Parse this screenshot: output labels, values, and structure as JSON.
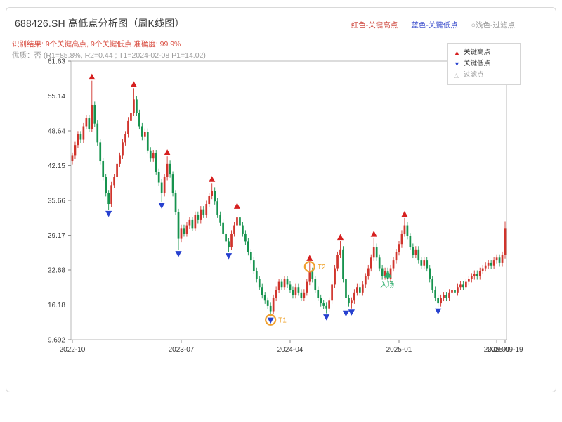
{
  "header": {
    "title": "688426.SH 高低点分析图（周K线图）",
    "legend_top": [
      {
        "label": "红色-关键高点",
        "color": "#cf4b42"
      },
      {
        "label": "蓝色-关键低点",
        "color": "#4a5bd0"
      },
      {
        "label": "○浅色-过滤点",
        "color": "#9a9a9a"
      }
    ],
    "result_line": "识别结果: 9个关键高点, 9个关键低点  准确度: 99.9%",
    "quality_line": "优质：否 (R1=85.8%, R2=0.44 ; T1=2024-02-08 P1=14.02)"
  },
  "legend_box": {
    "items": [
      {
        "label": "关键高点",
        "marker": "up-triangle",
        "color": "#d62020",
        "label_color": "#333333"
      },
      {
        "label": "关键低点",
        "marker": "down-triangle",
        "color": "#2741cf",
        "label_color": "#333333"
      },
      {
        "label": "过滤点",
        "marker": "open-triangle",
        "color": "#bbbbbb",
        "label_color": "#999999"
      }
    ]
  },
  "chart_data": {
    "type": "candlestick",
    "title": "688426.SH 高低点分析图（周K线图）",
    "ylim": [
      9.692,
      61.63
    ],
    "y_tick_labels": [
      "61.63",
      "55.14",
      "48.64",
      "42.15",
      "35.66",
      "29.17",
      "22.68",
      "16.18",
      "9.692"
    ],
    "x_ticks": [
      {
        "week": 0,
        "label": "2022-10"
      },
      {
        "week": 39,
        "label": "2023-07"
      },
      {
        "week": 78,
        "label": "2024-04"
      },
      {
        "week": 117,
        "label": "2025-01"
      },
      {
        "week": 152,
        "label": "2025-09"
      },
      {
        "week": 155,
        "label": "2025-09-19"
      }
    ],
    "up_color": "#d0342c",
    "down_color": "#16934e",
    "key_high_color": "#d62020",
    "key_low_color": "#2741cf",
    "annotation_color": "#f0a02e",
    "entry_color": "#2fae6d",
    "candles": [
      [
        43.0,
        44.6,
        42.4,
        44.0
      ],
      [
        44.0,
        46.6,
        43.4,
        46.0
      ],
      [
        46.0,
        48.6,
        45.4,
        48.0
      ],
      [
        48.0,
        48.6,
        46.4,
        47.0
      ],
      [
        47.0,
        50.1,
        46.4,
        49.5
      ],
      [
        49.5,
        51.6,
        48.9,
        51.0
      ],
      [
        51.0,
        51.6,
        48.4,
        49.0
      ],
      [
        49.0,
        58.0,
        48.4,
        53.5
      ],
      [
        53.5,
        54.1,
        49.4,
        50.0
      ],
      [
        50.0,
        50.6,
        45.9,
        46.5
      ],
      [
        46.5,
        47.1,
        42.4,
        43.0
      ],
      [
        43.0,
        43.6,
        39.4,
        40.0
      ],
      [
        40.0,
        40.6,
        36.4,
        37.0
      ],
      [
        37.0,
        37.6,
        33.9,
        35.0
      ],
      [
        35.0,
        39.1,
        34.4,
        38.5
      ],
      [
        38.5,
        40.6,
        37.9,
        40.0
      ],
      [
        40.0,
        43.1,
        39.4,
        42.5
      ],
      [
        42.5,
        44.6,
        41.9,
        44.0
      ],
      [
        44.0,
        47.1,
        43.4,
        46.5
      ],
      [
        46.5,
        48.6,
        45.9,
        48.0
      ],
      [
        48.0,
        51.1,
        47.4,
        50.5
      ],
      [
        50.5,
        52.6,
        49.9,
        52.0
      ],
      [
        52.0,
        56.6,
        51.4,
        54.5
      ],
      [
        54.5,
        55.1,
        51.4,
        52.0
      ],
      [
        52.0,
        52.6,
        48.9,
        49.5
      ],
      [
        49.5,
        50.1,
        46.9,
        47.5
      ],
      [
        47.5,
        49.1,
        46.9,
        48.5
      ],
      [
        48.5,
        49.1,
        44.4,
        45.0
      ],
      [
        45.0,
        45.6,
        42.9,
        43.5
      ],
      [
        43.5,
        45.1,
        42.9,
        44.5
      ],
      [
        44.5,
        45.1,
        40.4,
        41.0
      ],
      [
        41.0,
        41.6,
        38.4,
        39.0
      ],
      [
        39.0,
        39.6,
        35.4,
        37.0
      ],
      [
        37.0,
        40.6,
        36.4,
        40.0
      ],
      [
        40.0,
        43.9,
        39.4,
        42.5
      ],
      [
        42.5,
        43.1,
        39.9,
        40.5
      ],
      [
        40.5,
        41.1,
        36.4,
        37.0
      ],
      [
        37.0,
        37.6,
        32.9,
        33.5
      ],
      [
        33.5,
        34.1,
        26.4,
        28.5
      ],
      [
        28.5,
        31.1,
        27.9,
        30.5
      ],
      [
        30.5,
        31.1,
        28.9,
        29.5
      ],
      [
        29.5,
        31.6,
        28.9,
        31.0
      ],
      [
        31.0,
        32.6,
        30.4,
        32.0
      ],
      [
        32.0,
        32.6,
        29.9,
        30.5
      ],
      [
        30.5,
        33.6,
        29.9,
        33.0
      ],
      [
        33.0,
        33.6,
        31.4,
        32.0
      ],
      [
        32.0,
        34.6,
        31.4,
        34.0
      ],
      [
        34.0,
        34.6,
        32.4,
        33.0
      ],
      [
        33.0,
        35.6,
        32.4,
        35.0
      ],
      [
        35.0,
        37.1,
        34.4,
        36.5
      ],
      [
        36.5,
        38.9,
        35.9,
        37.5
      ],
      [
        37.5,
        38.1,
        34.9,
        35.5
      ],
      [
        35.5,
        36.1,
        32.4,
        33.0
      ],
      [
        33.0,
        33.6,
        30.9,
        31.5
      ],
      [
        31.5,
        32.1,
        28.9,
        29.5
      ],
      [
        29.5,
        30.1,
        27.4,
        28.0
      ],
      [
        28.0,
        28.6,
        26.0,
        27.0
      ],
      [
        27.0,
        30.1,
        26.4,
        29.5
      ],
      [
        29.5,
        31.6,
        28.9,
        31.0
      ],
      [
        31.0,
        33.9,
        30.4,
        32.5
      ],
      [
        32.5,
        33.1,
        30.4,
        31.0
      ],
      [
        31.0,
        31.6,
        28.9,
        29.5
      ],
      [
        29.5,
        30.1,
        27.4,
        28.0
      ],
      [
        28.0,
        28.6,
        25.4,
        26.0
      ],
      [
        26.0,
        26.6,
        23.9,
        24.5
      ],
      [
        24.5,
        25.1,
        21.9,
        22.5
      ],
      [
        22.5,
        23.1,
        20.4,
        21.0
      ],
      [
        21.0,
        21.6,
        18.9,
        19.5
      ],
      [
        19.5,
        20.1,
        17.4,
        18.0
      ],
      [
        18.0,
        18.6,
        16.4,
        17.0
      ],
      [
        17.0,
        17.6,
        15.4,
        16.0
      ],
      [
        16.0,
        16.6,
        14.0,
        15.0
      ],
      [
        15.0,
        18.1,
        14.4,
        17.5
      ],
      [
        17.5,
        19.6,
        16.9,
        19.0
      ],
      [
        19.0,
        21.1,
        18.4,
        20.5
      ],
      [
        20.5,
        21.1,
        18.9,
        19.5
      ],
      [
        19.5,
        21.6,
        18.9,
        21.0
      ],
      [
        21.0,
        21.6,
        19.4,
        20.0
      ],
      [
        20.0,
        20.6,
        18.4,
        19.0
      ],
      [
        19.0,
        19.6,
        17.4,
        18.0
      ],
      [
        18.0,
        20.1,
        17.4,
        19.5
      ],
      [
        19.5,
        20.1,
        17.9,
        18.5
      ],
      [
        18.5,
        19.1,
        16.9,
        17.5
      ],
      [
        17.5,
        19.1,
        16.9,
        18.5
      ],
      [
        18.5,
        21.1,
        17.9,
        20.5
      ],
      [
        20.5,
        24.2,
        19.9,
        22.5
      ],
      [
        22.5,
        23.1,
        20.4,
        21.0
      ],
      [
        21.0,
        21.6,
        18.4,
        19.0
      ],
      [
        19.0,
        19.6,
        16.9,
        17.5
      ],
      [
        17.5,
        18.1,
        15.9,
        16.5
      ],
      [
        16.5,
        17.1,
        15.4,
        16.0
      ],
      [
        16.0,
        16.6,
        14.6,
        15.5
      ],
      [
        15.5,
        17.6,
        14.9,
        17.0
      ],
      [
        17.0,
        20.6,
        16.4,
        20.0
      ],
      [
        20.0,
        23.6,
        19.4,
        23.0
      ],
      [
        23.0,
        26.1,
        22.4,
        25.5
      ],
      [
        25.5,
        28.1,
        24.9,
        26.5
      ],
      [
        26.5,
        27.1,
        20.4,
        21.0
      ],
      [
        21.0,
        21.6,
        15.3,
        17.5
      ],
      [
        17.5,
        18.1,
        15.9,
        16.5
      ],
      [
        16.5,
        17.6,
        15.5,
        17.0
      ],
      [
        17.0,
        19.1,
        16.4,
        18.5
      ],
      [
        18.5,
        20.1,
        17.9,
        19.5
      ],
      [
        19.5,
        20.1,
        17.9,
        18.5
      ],
      [
        18.5,
        20.6,
        17.9,
        20.0
      ],
      [
        20.0,
        22.1,
        19.4,
        21.5
      ],
      [
        21.5,
        23.6,
        20.9,
        23.0
      ],
      [
        23.0,
        25.6,
        22.4,
        25.0
      ],
      [
        25.0,
        28.7,
        24.4,
        27.0
      ],
      [
        27.0,
        27.6,
        24.4,
        25.0
      ],
      [
        25.0,
        25.6,
        22.4,
        23.0
      ],
      [
        23.0,
        23.6,
        20.9,
        21.5
      ],
      [
        21.5,
        23.1,
        20.9,
        22.5
      ],
      [
        22.5,
        23.1,
        20.4,
        21.0
      ],
      [
        21.0,
        23.6,
        20.4,
        23.0
      ],
      [
        23.0,
        25.1,
        22.4,
        24.5
      ],
      [
        24.5,
        26.6,
        23.9,
        26.0
      ],
      [
        26.0,
        28.1,
        25.4,
        27.5
      ],
      [
        27.5,
        30.1,
        26.9,
        29.5
      ],
      [
        29.5,
        32.4,
        28.9,
        31.0
      ],
      [
        31.0,
        31.6,
        28.4,
        29.0
      ],
      [
        29.0,
        29.6,
        26.4,
        27.0
      ],
      [
        27.0,
        27.6,
        24.9,
        25.5
      ],
      [
        25.5,
        27.1,
        24.9,
        26.5
      ],
      [
        26.5,
        27.1,
        23.9,
        24.5
      ],
      [
        24.5,
        25.1,
        22.9,
        23.5
      ],
      [
        23.5,
        25.1,
        22.9,
        24.5
      ],
      [
        24.5,
        25.1,
        22.4,
        23.0
      ],
      [
        23.0,
        23.6,
        20.4,
        21.0
      ],
      [
        21.0,
        21.6,
        18.4,
        19.0
      ],
      [
        19.0,
        19.6,
        16.9,
        17.5
      ],
      [
        17.5,
        18.1,
        15.7,
        16.5
      ],
      [
        16.5,
        18.1,
        15.9,
        17.5
      ],
      [
        17.5,
        18.6,
        16.9,
        18.0
      ],
      [
        18.0,
        18.6,
        16.9,
        17.5
      ],
      [
        17.5,
        19.1,
        16.9,
        18.5
      ],
      [
        18.5,
        19.6,
        17.9,
        19.0
      ],
      [
        19.0,
        19.6,
        17.9,
        18.5
      ],
      [
        18.5,
        20.1,
        17.9,
        19.5
      ],
      [
        19.5,
        20.6,
        18.9,
        20.0
      ],
      [
        20.0,
        20.6,
        18.9,
        19.5
      ],
      [
        19.5,
        21.1,
        18.9,
        20.5
      ],
      [
        20.5,
        21.6,
        19.9,
        21.0
      ],
      [
        21.0,
        22.1,
        20.4,
        21.5
      ],
      [
        21.5,
        22.6,
        20.9,
        22.0
      ],
      [
        22.0,
        22.6,
        20.9,
        21.5
      ],
      [
        21.5,
        23.1,
        20.9,
        22.5
      ],
      [
        22.5,
        23.6,
        21.9,
        23.0
      ],
      [
        23.0,
        24.1,
        22.4,
        23.5
      ],
      [
        23.5,
        24.6,
        22.9,
        24.0
      ],
      [
        24.0,
        24.6,
        22.9,
        23.5
      ],
      [
        23.5,
        25.1,
        22.9,
        24.5
      ],
      [
        24.5,
        25.6,
        23.9,
        25.0
      ],
      [
        25.0,
        25.6,
        23.4,
        24.0
      ],
      [
        24.0,
        26.1,
        23.4,
        25.5
      ],
      [
        25.5,
        31.8,
        24.8,
        30.5
      ]
    ],
    "key_highs": [
      {
        "week": 7,
        "price": 58.0
      },
      {
        "week": 22,
        "price": 56.6
      },
      {
        "week": 34,
        "price": 43.9
      },
      {
        "week": 50,
        "price": 38.9
      },
      {
        "week": 59,
        "price": 33.9
      },
      {
        "week": 85,
        "price": 24.2
      },
      {
        "week": 96,
        "price": 28.1
      },
      {
        "week": 108,
        "price": 28.7
      },
      {
        "week": 119,
        "price": 32.4
      }
    ],
    "key_lows": [
      {
        "week": 13,
        "price": 33.9
      },
      {
        "week": 32,
        "price": 35.4
      },
      {
        "week": 38,
        "price": 26.4
      },
      {
        "week": 56,
        "price": 26.0
      },
      {
        "week": 71,
        "price": 14.0
      },
      {
        "week": 91,
        "price": 14.6
      },
      {
        "week": 98,
        "price": 15.3
      },
      {
        "week": 100,
        "price": 15.5
      },
      {
        "week": 131,
        "price": 15.7
      }
    ],
    "annotations": [
      {
        "type": "circle",
        "week": 71,
        "price": 13.4,
        "label": "T1"
      },
      {
        "type": "circle",
        "week": 85,
        "price": 23.3,
        "label": "T2"
      },
      {
        "type": "entry",
        "week": 113,
        "price": 21.8,
        "label": "入场"
      }
    ]
  }
}
